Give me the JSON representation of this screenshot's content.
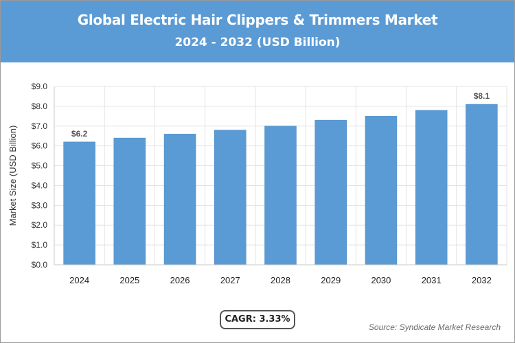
{
  "header": {
    "title": "Global Electric Hair Clippers & Trimmers Market",
    "subtitle": "2024 - 2032 (USD Billion)"
  },
  "footer": {
    "cagr": "CAGR: 3.33%",
    "source": "Source: Syndicate Market Research"
  },
  "colors": {
    "header_bg": "#5b9bd5",
    "bar": "#5b9bd5"
  },
  "chart_data": {
    "type": "bar",
    "title": "Global Electric Hair Clippers & Trimmers Market",
    "subtitle": "2024 - 2032 (USD Billion)",
    "xlabel": "",
    "ylabel": "Market Size (USD Billion)",
    "categories": [
      "2024",
      "2025",
      "2026",
      "2027",
      "2028",
      "2029",
      "2030",
      "2031",
      "2032"
    ],
    "values": [
      6.2,
      6.4,
      6.6,
      6.8,
      7.0,
      7.3,
      7.5,
      7.8,
      8.1
    ],
    "data_labels": [
      "$6.2",
      "",
      "",
      "",
      "",
      "",
      "",
      "",
      "$8.1"
    ],
    "ylim": [
      0,
      9
    ],
    "yticks": [
      0,
      1,
      2,
      3,
      4,
      5,
      6,
      7,
      8,
      9
    ],
    "ytick_labels": [
      "$0.0",
      "$1.0",
      "$2.0",
      "$3.0",
      "$4.0",
      "$5.0",
      "$6.0",
      "$7.0",
      "$8.0",
      "$9.0"
    ],
    "grid": true,
    "legend": "none"
  }
}
